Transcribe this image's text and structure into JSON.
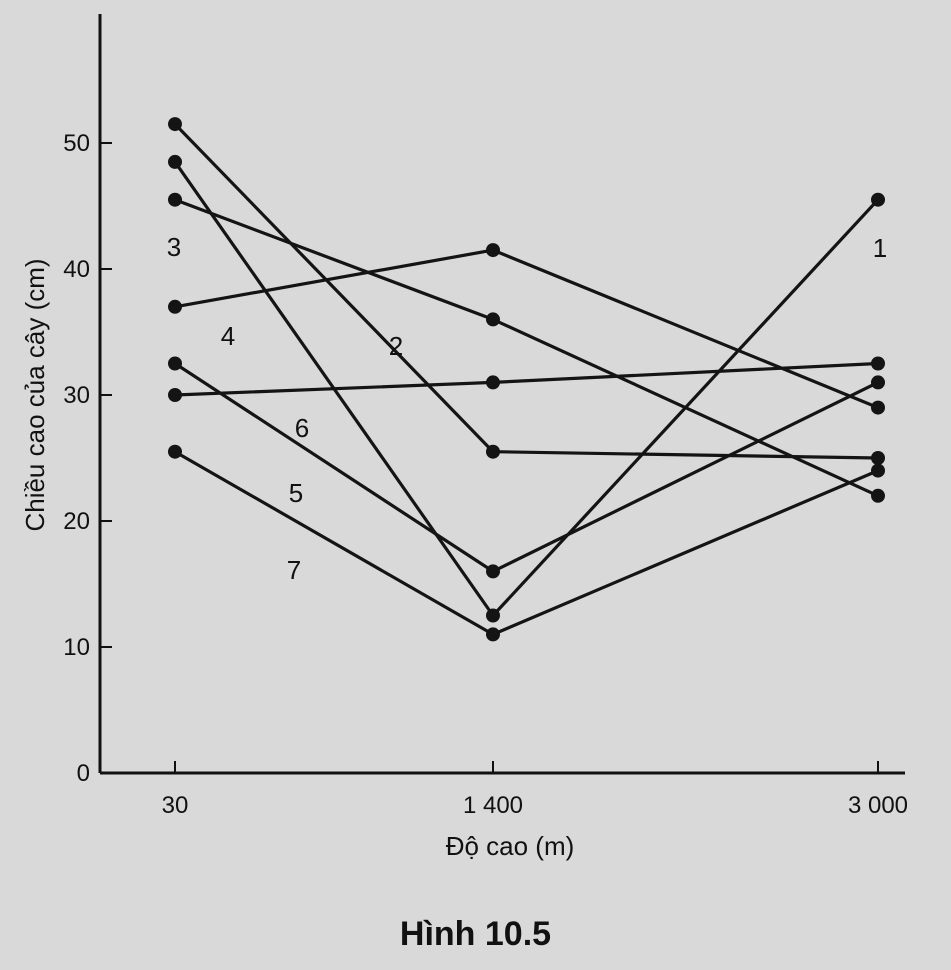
{
  "chart_data": {
    "type": "line",
    "categories": [
      "30",
      "1 400",
      "3 000"
    ],
    "xlabel": "Độ cao (m)",
    "ylabel": "Chiều cao của cây (cm)",
    "ylim": [
      0,
      55
    ],
    "yticks": [
      "0",
      "10",
      "20",
      "30",
      "40",
      "50"
    ],
    "grid": false,
    "series": [
      {
        "name": "1",
        "values": [
          48.5,
          12.5,
          45.5
        ]
      },
      {
        "name": "2",
        "values": [
          51.5,
          25.5,
          25
        ]
      },
      {
        "name": "3",
        "values": [
          45.5,
          36,
          22
        ]
      },
      {
        "name": "4",
        "values": [
          37,
          41.5,
          29
        ]
      },
      {
        "name": "5",
        "values": [
          32.5,
          16,
          31
        ]
      },
      {
        "name": "6",
        "values": [
          30,
          31,
          32.5
        ]
      },
      {
        "name": "7",
        "values": [
          25.5,
          11,
          24
        ]
      }
    ]
  },
  "caption": "Hình 10.5"
}
